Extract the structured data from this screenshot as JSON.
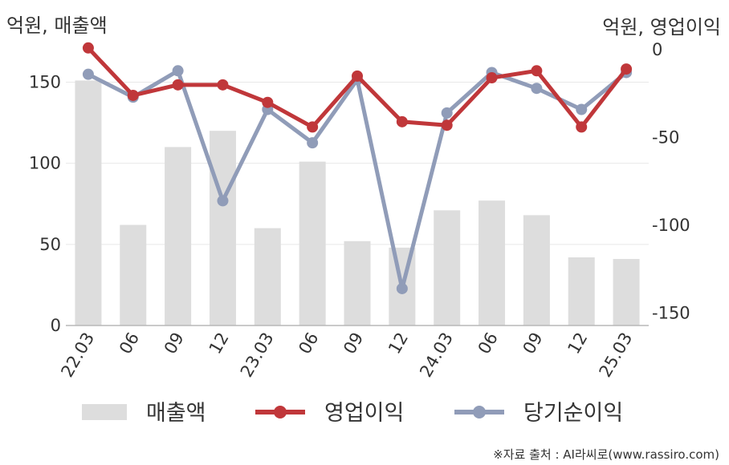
{
  "units": {
    "left": "억원, 매출액",
    "right": "억원, 영업이익"
  },
  "source": "※자료 출처 : AI라씨로(www.rassiro.com)",
  "chart_data": {
    "type": "bar+line",
    "categories": [
      "22.03",
      "06",
      "09",
      "12",
      "23.03",
      "06",
      "09",
      "12",
      "24.03",
      "06",
      "09",
      "12",
      "25.03"
    ],
    "left_axis": {
      "ylim": [
        0,
        170
      ],
      "ticks": [
        0,
        50,
        100,
        150
      ]
    },
    "right_axis": {
      "ylim": [
        -157,
        0
      ],
      "ticks": [
        0,
        -50,
        -100,
        -150
      ]
    },
    "grid": true,
    "legend": "bottom",
    "series": [
      {
        "name": "매출액",
        "type": "bar",
        "axis": "left",
        "color": "#dddddd",
        "values": [
          151,
          62,
          110,
          120,
          60,
          101,
          52,
          48,
          71,
          77,
          68,
          42,
          41
        ]
      },
      {
        "name": "영업이익",
        "type": "line",
        "axis": "right",
        "color": "#c0373a",
        "values": [
          1,
          -26,
          -20,
          -20,
          -30,
          -44,
          -15,
          -41,
          -43,
          -16,
          -12,
          -44,
          -11
        ]
      },
      {
        "name": "당기순이익",
        "type": "line",
        "axis": "right",
        "color": "#909cb8",
        "values": [
          -14,
          -27,
          -12,
          -86,
          -34,
          -53,
          -17,
          -136,
          -36,
          -13,
          -22,
          -34,
          -13
        ]
      }
    ]
  }
}
